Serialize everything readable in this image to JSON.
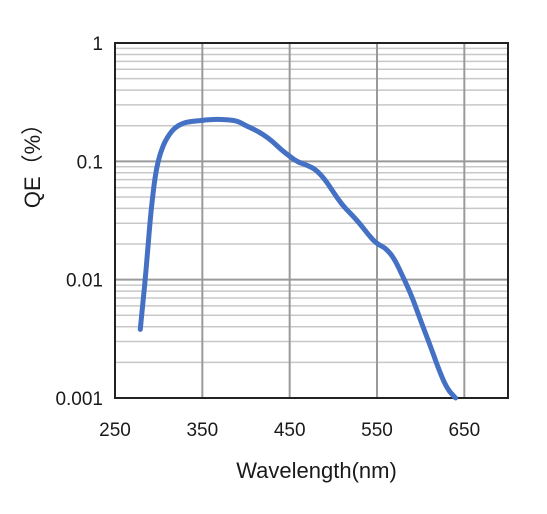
{
  "chart_data": {
    "type": "line",
    "title": "",
    "xlabel": "Wavelength(nm)",
    "ylabel": "QE（%）",
    "xlim": [
      250,
      700
    ],
    "ylim": [
      0.001,
      1
    ],
    "yscale": "log",
    "x_ticks": [
      250,
      350,
      450,
      550,
      650
    ],
    "x_tick_labels": [
      "250",
      "350",
      "450",
      "550",
      "650"
    ],
    "y_ticks": [
      0.001,
      0.01,
      0.1,
      1
    ],
    "y_tick_labels": [
      "0.001",
      "0.01",
      "0.1",
      "1"
    ],
    "grid": true,
    "legend": "none",
    "colors": {
      "line": "#4471c4",
      "major_grid": "#9a9a9a",
      "minor_grid": "#c8c8c8",
      "frame": "#222222"
    },
    "series": [
      {
        "x": [
          279,
          281,
          284,
          287,
          290,
          293,
          296,
          300,
          305,
          310,
          315,
          320,
          325,
          330,
          335,
          340,
          345,
          350,
          355,
          360,
          365,
          370,
          375,
          380,
          385,
          390,
          395,
          400,
          410,
          420,
          430,
          440,
          450,
          460,
          470,
          480,
          490,
          500,
          510,
          520,
          530,
          540,
          550,
          560,
          570,
          580,
          590,
          600,
          610,
          620,
          630,
          640
        ],
        "values": [
          0.0038,
          0.0055,
          0.009,
          0.016,
          0.03,
          0.05,
          0.075,
          0.105,
          0.135,
          0.16,
          0.18,
          0.195,
          0.205,
          0.212,
          0.216,
          0.218,
          0.22,
          0.222,
          0.224,
          0.225,
          0.226,
          0.226,
          0.225,
          0.224,
          0.222,
          0.218,
          0.21,
          0.2,
          0.185,
          0.168,
          0.148,
          0.126,
          0.11,
          0.098,
          0.093,
          0.085,
          0.071,
          0.055,
          0.043,
          0.036,
          0.03,
          0.024,
          0.02,
          0.0185,
          0.015,
          0.0105,
          0.0072,
          0.0045,
          0.0029,
          0.0018,
          0.0012,
          0.001
        ]
      }
    ]
  }
}
